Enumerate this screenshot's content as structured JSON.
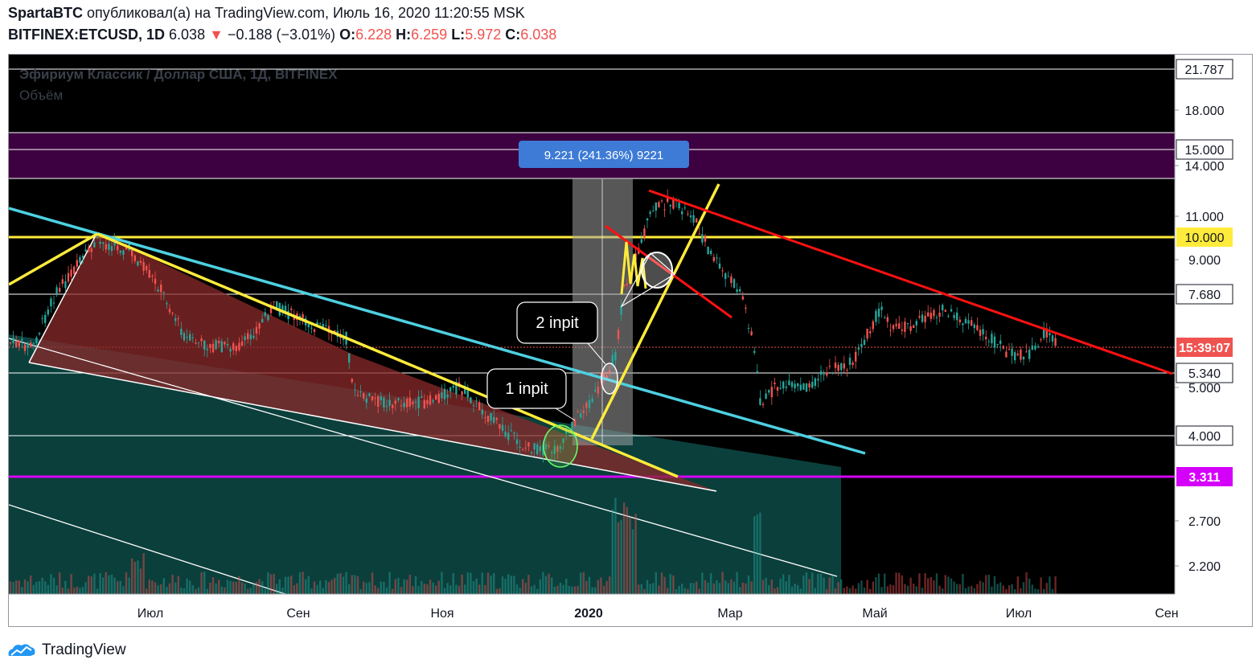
{
  "header": {
    "author": "SpartaBTC",
    "published_text": "опубликовал(а) на TradingView.com, Июль 16, 2020 11:20:55 MSK",
    "symbol": "BITFINEX:ETCUSD, 1D",
    "price": "6.038",
    "change_arrow": "▼",
    "change": "−0.188 (−3.01%)",
    "o_label": "O:",
    "o_value": "6.228",
    "h_label": "H:",
    "h_value": "6.259",
    "l_label": "L:",
    "l_value": "5.972",
    "c_label": "C:",
    "c_value": "6.038"
  },
  "chart": {
    "legend_title": "Эфириум Классик / Доллар США, 1Д, BITFINEX",
    "legend_volume": "Объём",
    "measure_label": "9.221 (241.36%) 9221",
    "annotation_1": "1 inpit",
    "annotation_2": "2 inpit",
    "price_axis": [
      {
        "label": "21.787",
        "type": "box"
      },
      {
        "label": "18.000",
        "type": "tick"
      },
      {
        "label": "15.000",
        "type": "box"
      },
      {
        "label": "14.000",
        "type": "tick"
      },
      {
        "label": "11.000",
        "type": "tick"
      },
      {
        "label": "10.000",
        "type": "box-yellow"
      },
      {
        "label": "9.000",
        "type": "tick"
      },
      {
        "label": "7.680",
        "type": "box"
      },
      {
        "label": "15:39:07",
        "type": "box-red"
      },
      {
        "label": "5.340",
        "type": "box"
      },
      {
        "label": "5.000",
        "type": "tick"
      },
      {
        "label": "4.000",
        "type": "box"
      },
      {
        "label": "3.311",
        "type": "box-magenta"
      },
      {
        "label": "2.700",
        "type": "tick"
      },
      {
        "label": "2.200",
        "type": "tick"
      }
    ],
    "time_axis": [
      "Июл",
      "Сен",
      "Ноя",
      "2020",
      "Мар",
      "Май",
      "Июл",
      "Сен"
    ],
    "colors": {
      "background": "#000000",
      "purple_zone": "#3d0040",
      "yellow_line": "#ffeb3b",
      "cyan_line": "#4dd0e1",
      "red_line": "#ff1111",
      "magenta_line": "#d500f9",
      "teal_channel": "#0d4a47"
    }
  },
  "footer": {
    "brand": "TradingView"
  }
}
